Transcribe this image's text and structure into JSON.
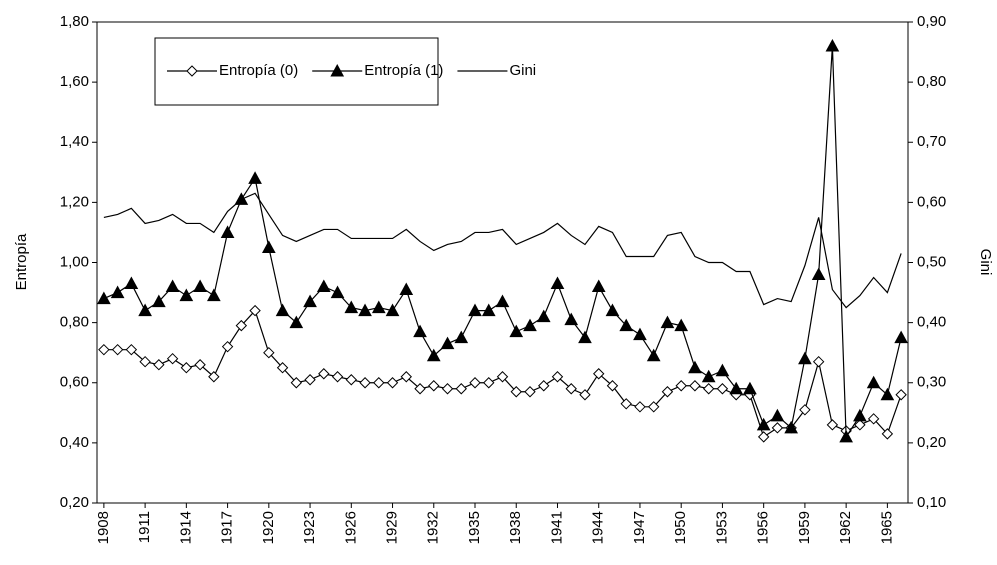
{
  "chart_data": {
    "type": "line",
    "categories": [
      "1908",
      null,
      null,
      "1911",
      null,
      null,
      "1914",
      null,
      null,
      "1917",
      null,
      null,
      "1920",
      null,
      null,
      "1923",
      null,
      null,
      "1926",
      null,
      null,
      "1929",
      null,
      null,
      "1932",
      null,
      null,
      "1935",
      null,
      null,
      "1938",
      null,
      null,
      "1941",
      null,
      null,
      "1944",
      null,
      null,
      "1947",
      null,
      null,
      "1950",
      null,
      null,
      "1953",
      null,
      null,
      "1956",
      null,
      null,
      "1959",
      null,
      null,
      "1962",
      null,
      null,
      "1965",
      null
    ],
    "y_label": "Entropía",
    "y2_label": "Gini",
    "ylim": [
      0.2,
      1.8
    ],
    "yticks": [
      {
        "value": 0.2,
        "label": "0,20"
      },
      {
        "value": 0.4,
        "label": "0,40"
      },
      {
        "value": 0.6,
        "label": "0,60"
      },
      {
        "value": 0.8,
        "label": "0,80"
      },
      {
        "value": 1.0,
        "label": "1,00"
      },
      {
        "value": 1.2,
        "label": "1,20"
      },
      {
        "value": 1.4,
        "label": "1,40"
      },
      {
        "value": 1.6,
        "label": "1,60"
      },
      {
        "value": 1.8,
        "label": "1,80"
      }
    ],
    "y2lim": [
      0.1,
      0.9
    ],
    "y2ticks": [
      {
        "value": 0.1,
        "label": "0,10"
      },
      {
        "value": 0.2,
        "label": "0,20"
      },
      {
        "value": 0.3,
        "label": "0,30"
      },
      {
        "value": 0.4,
        "label": "0,40"
      },
      {
        "value": 0.5,
        "label": "0,50"
      },
      {
        "value": 0.6,
        "label": "0,60"
      },
      {
        "value": 0.7,
        "label": "0,70"
      },
      {
        "value": 0.8,
        "label": "0,80"
      },
      {
        "value": 0.9,
        "label": "0,90"
      }
    ],
    "grid": false,
    "legend": "top-left",
    "series": [
      {
        "name": "Entropía (0)",
        "color": "#000000",
        "marker": "diamond",
        "values": [
          0.71,
          0.71,
          0.71,
          0.67,
          0.66,
          0.68,
          0.65,
          0.66,
          0.62,
          0.72,
          0.79,
          0.84,
          0.7,
          0.65,
          0.6,
          0.61,
          0.63,
          0.62,
          0.61,
          0.6,
          0.6,
          0.6,
          0.62,
          0.58,
          0.59,
          0.58,
          0.58,
          0.6,
          0.6,
          0.62,
          0.57,
          0.57,
          0.59,
          0.62,
          0.58,
          0.56,
          0.63,
          0.59,
          0.53,
          0.52,
          0.52,
          0.57,
          0.59,
          0.59,
          0.58,
          0.58,
          0.56,
          0.56,
          0.42,
          0.45,
          0.45,
          0.51,
          0.67,
          0.46,
          0.44,
          0.46,
          0.48,
          0.43,
          0.56
        ]
      },
      {
        "name": "Entropía (1)",
        "color": "#000000",
        "marker": "triangle",
        "values": [
          0.88,
          0.9,
          0.93,
          0.84,
          0.87,
          0.92,
          0.89,
          0.92,
          0.89,
          1.1,
          1.21,
          1.28,
          1.05,
          0.84,
          0.8,
          0.87,
          0.92,
          0.9,
          0.85,
          0.84,
          0.85,
          0.84,
          0.91,
          0.77,
          0.69,
          0.73,
          0.75,
          0.84,
          0.84,
          0.87,
          0.77,
          0.79,
          0.82,
          0.93,
          0.81,
          0.75,
          0.92,
          0.84,
          0.79,
          0.76,
          0.69,
          0.8,
          0.79,
          0.65,
          0.62,
          0.64,
          0.58,
          0.58,
          0.46,
          0.49,
          0.45,
          0.68,
          0.96,
          1.72,
          0.42,
          0.49,
          0.6,
          0.56,
          0.75
        ]
      },
      {
        "name": "Gini",
        "color": "#000000",
        "marker": "none",
        "axis": "y2",
        "values": [
          0.575,
          0.58,
          0.59,
          0.565,
          0.57,
          0.58,
          0.565,
          0.565,
          0.55,
          0.585,
          0.605,
          0.615,
          0.58,
          0.545,
          0.535,
          0.545,
          0.555,
          0.555,
          0.54,
          0.54,
          0.54,
          0.54,
          0.555,
          0.535,
          0.52,
          0.53,
          0.535,
          0.55,
          0.55,
          0.555,
          0.53,
          0.54,
          0.55,
          0.565,
          0.545,
          0.53,
          0.56,
          0.55,
          0.51,
          0.51,
          0.51,
          0.545,
          0.55,
          0.51,
          0.5,
          0.5,
          0.485,
          0.485,
          0.43,
          0.44,
          0.435,
          0.495,
          0.575,
          0.455,
          0.425,
          0.445,
          0.475,
          0.45,
          0.515
        ]
      }
    ]
  }
}
